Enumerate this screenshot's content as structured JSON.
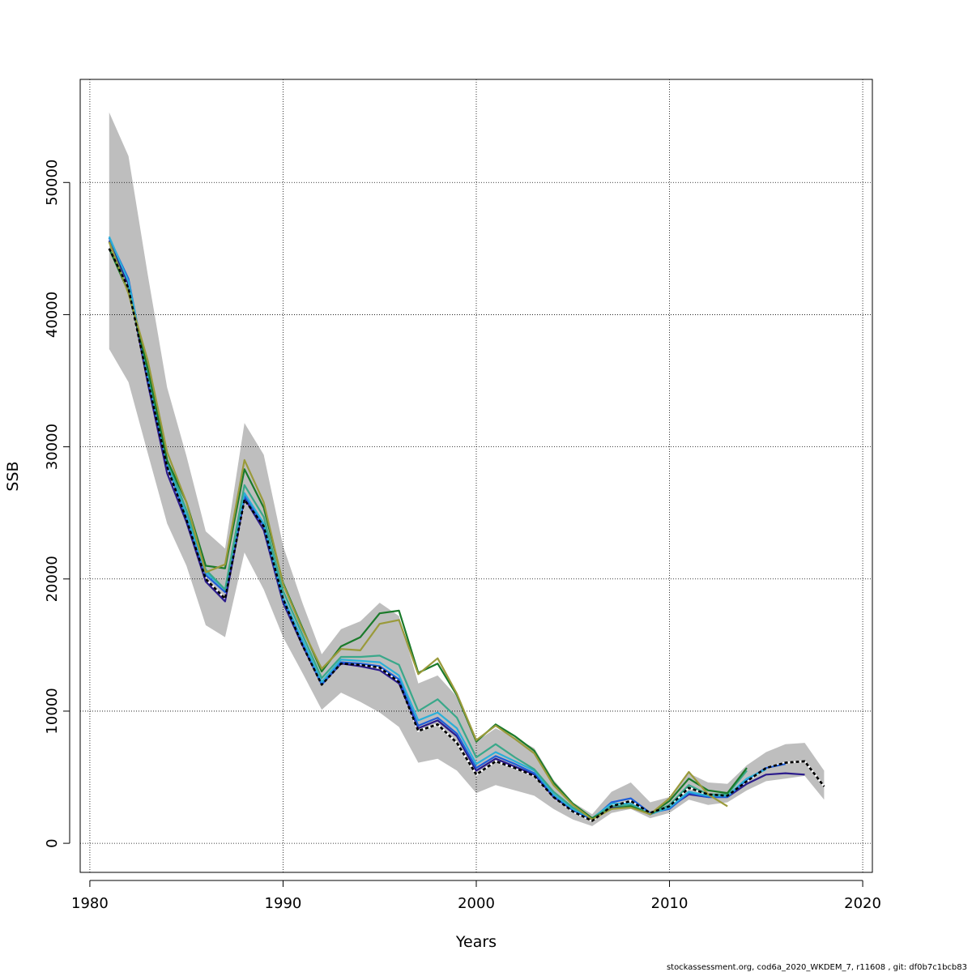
{
  "chart_data": {
    "type": "line",
    "xlabel": "Years",
    "ylabel": "SSB",
    "xlim": [
      1979.5,
      2020.5
    ],
    "ylim": [
      -2200,
      57800
    ],
    "x_ticks": [
      1980,
      1990,
      2000,
      2010,
      2020
    ],
    "y_ticks": [
      0,
      10000,
      20000,
      30000,
      40000,
      50000
    ],
    "x_tick_labels": [
      "1980",
      "1990",
      "2000",
      "2010",
      "2020"
    ],
    "y_tick_labels": [
      "0",
      "10000",
      "20000",
      "30000",
      "40000",
      "50000"
    ],
    "grid": true,
    "footer": "stockassessment.org, cod6a_2020_WKDEM_7, r11608 , git: df0b7c1bcb83",
    "confidence_band": {
      "color": "#bebebe",
      "x": [
        1981,
        1982,
        1983,
        1984,
        1985,
        1986,
        1987,
        1988,
        1989,
        1990,
        1991,
        1992,
        1993,
        1994,
        1995,
        1996,
        1997,
        1998,
        1999,
        2000,
        2001,
        2002,
        2003,
        2004,
        2005,
        2006,
        2007,
        2008,
        2009,
        2010,
        2011,
        2012,
        2013,
        2014,
        2015,
        2016,
        2017,
        2018
      ],
      "upper": [
        55300,
        52000,
        43000,
        34500,
        29300,
        23600,
        22300,
        31800,
        29400,
        22500,
        18200,
        14300,
        16200,
        16800,
        18200,
        17200,
        12100,
        12700,
        11100,
        7700,
        8700,
        8000,
        7200,
        4800,
        3100,
        2200,
        3900,
        4600,
        3100,
        3500,
        5300,
        4600,
        4500,
        5900,
        6900,
        7500,
        7600,
        5500
      ],
      "lower": [
        37400,
        34900,
        29500,
        24200,
        21000,
        16500,
        15600,
        22000,
        19200,
        15600,
        12900,
        10100,
        11400,
        10700,
        9900,
        8800,
        6100,
        6400,
        5500,
        3800,
        4400,
        4000,
        3600,
        2600,
        1800,
        1300,
        2300,
        2600,
        1900,
        2300,
        3300,
        2900,
        3100,
        4000,
        4700,
        4900,
        5100,
        3300
      ]
    },
    "series": [
      {
        "color": "#000000",
        "dashed": true,
        "x": [
          1981,
          1982,
          1983,
          1984,
          1985,
          1986,
          1987,
          1988,
          1989,
          1990,
          1991,
          1992,
          1993,
          1994,
          1995,
          1996,
          1997,
          1998,
          1999,
          2000,
          2001,
          2002,
          2003,
          2004,
          2005,
          2006,
          2007,
          2008,
          2009,
          2010,
          2011,
          2012,
          2013,
          2014,
          2015,
          2016,
          2017,
          2018
        ],
        "values": [
          45000,
          42000,
          35000,
          28500,
          24500,
          20000,
          18500,
          26000,
          24000,
          18500,
          15000,
          12000,
          13600,
          13500,
          13300,
          12200,
          8500,
          9000,
          7600,
          5200,
          6200,
          5700,
          5100,
          3500,
          2400,
          1700,
          2800,
          3200,
          2300,
          2800,
          4200,
          3700,
          3600,
          4700,
          5700,
          6100,
          6200,
          4300
        ]
      },
      {
        "color": "#2b1b8c",
        "dashed": false,
        "x": [
          1981,
          1982,
          1983,
          1984,
          1985,
          1986,
          1987,
          1988,
          1989,
          1990,
          1991,
          1992,
          1993,
          1994,
          1995,
          1996,
          1997,
          1998,
          1999,
          2000,
          2001,
          2002,
          2003,
          2004,
          2005,
          2006,
          2007,
          2008,
          2009,
          2010,
          2011,
          2012,
          2013,
          2014,
          2015,
          2016,
          2017
        ],
        "values": [
          45600,
          42300,
          34800,
          28000,
          24300,
          19800,
          18300,
          26100,
          23700,
          18200,
          15000,
          12000,
          13600,
          13400,
          13100,
          12100,
          8700,
          9300,
          8100,
          5500,
          6400,
          5800,
          5200,
          3500,
          2500,
          1800,
          2700,
          2800,
          2200,
          2700,
          3700,
          3500,
          3500,
          4500,
          5200,
          5300,
          5200
        ]
      },
      {
        "color": "#1f5fd8",
        "dashed": false,
        "x": [
          1981,
          1982,
          1983,
          1984,
          1985,
          1986,
          1987,
          1988,
          1989,
          1990,
          1991,
          1992,
          1993,
          1994,
          1995,
          1996,
          1997,
          1998,
          1999,
          2000,
          2001,
          2002,
          2003,
          2004,
          2005,
          2006,
          2007,
          2008,
          2009,
          2010,
          2011,
          2012,
          2013,
          2014,
          2015,
          2016
        ],
        "values": [
          45800,
          42700,
          35200,
          28600,
          24600,
          20300,
          19000,
          26300,
          24000,
          18400,
          15200,
          12000,
          13700,
          13600,
          13400,
          12400,
          8900,
          9500,
          8300,
          5700,
          6600,
          6000,
          5300,
          3600,
          2500,
          1800,
          3100,
          3400,
          2300,
          2600,
          3800,
          3500,
          3500,
          4800,
          5700,
          6000
        ]
      },
      {
        "color": "#2ab0d8",
        "dashed": false,
        "x": [
          1981,
          1982,
          1983,
          1984,
          1985,
          1986,
          1987,
          1988,
          1989,
          1990,
          1991,
          1992,
          1993,
          1994,
          1995,
          1996,
          1997,
          1998,
          1999,
          2000,
          2001,
          2002,
          2003,
          2004,
          2005,
          2006,
          2007,
          2008,
          2009,
          2010,
          2011,
          2012,
          2013,
          2014,
          2015
        ],
        "values": [
          45900,
          42500,
          35500,
          28800,
          24800,
          20500,
          19200,
          26500,
          24200,
          18600,
          15400,
          12200,
          13900,
          13800,
          13700,
          12700,
          9300,
          9900,
          8700,
          6000,
          6900,
          6200,
          5500,
          3700,
          2600,
          1900,
          3000,
          3000,
          2200,
          2700,
          3900,
          3600,
          3600,
          4900,
          5600
        ]
      },
      {
        "color": "#3aa88a",
        "dashed": false,
        "x": [
          1981,
          1982,
          1983,
          1984,
          1985,
          1986,
          1987,
          1988,
          1989,
          1990,
          1991,
          1992,
          1993,
          1994,
          1995,
          1996,
          1997,
          1998,
          1999,
          2000,
          2001,
          2002,
          2003,
          2004,
          2005,
          2006,
          2007,
          2008,
          2009,
          2010,
          2011,
          2012,
          2013,
          2014
        ],
        "values": [
          45500,
          41800,
          35800,
          29000,
          25200,
          20700,
          19200,
          27100,
          24700,
          19100,
          15800,
          12500,
          14100,
          14100,
          14200,
          13500,
          10000,
          10900,
          9500,
          6500,
          7500,
          6500,
          5600,
          3900,
          2700,
          1900,
          2800,
          2900,
          2200,
          2900,
          4400,
          3700,
          3700,
          5500
        ]
      },
      {
        "color": "#1a7a2a",
        "dashed": false,
        "x": [
          1981,
          1982,
          1983,
          1984,
          1985,
          1986,
          1987,
          1988,
          1989,
          1990,
          1991,
          1992,
          1993,
          1994,
          1995,
          1996,
          1997,
          1998,
          1999,
          2000,
          2001,
          2002,
          2003,
          2004,
          2005,
          2006,
          2007,
          2008,
          2009,
          2010,
          2011,
          2012,
          2013,
          2014
        ],
        "values": [
          45000,
          41700,
          35900,
          29000,
          25800,
          21000,
          20800,
          28300,
          25400,
          19700,
          16300,
          13000,
          14900,
          15600,
          17400,
          17600,
          12900,
          13600,
          11200,
          7700,
          9000,
          8100,
          7000,
          4600,
          3000,
          1900,
          2600,
          2800,
          2200,
          3200,
          4900,
          4000,
          3800,
          5700
        ]
      },
      {
        "color": "#9a9a3a",
        "dashed": false,
        "x": [
          1981,
          1982,
          1983,
          1984,
          1985,
          1986,
          1987,
          1988,
          1989,
          1990,
          1991,
          1992,
          1993,
          1994,
          1995,
          1996,
          1997,
          1998,
          1999,
          2000,
          2001,
          2002,
          2003,
          2004,
          2005,
          2006,
          2007,
          2008,
          2009,
          2010,
          2011,
          2012,
          2013
        ],
        "values": [
          45500,
          41600,
          36500,
          29600,
          25800,
          20500,
          21100,
          29000,
          25800,
          19600,
          16200,
          13200,
          14700,
          14600,
          16600,
          16900,
          12800,
          14000,
          11300,
          7800,
          8900,
          7900,
          6800,
          4400,
          2900,
          1800,
          2600,
          2700,
          2200,
          3400,
          5400,
          3700,
          2800
        ]
      }
    ]
  }
}
